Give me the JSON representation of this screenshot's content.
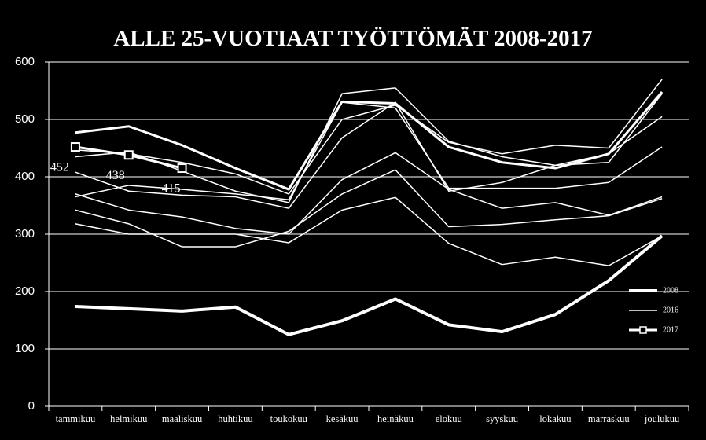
{
  "chart_data": {
    "type": "line",
    "title": "ALLE 25-VUOTIAAT TYÖTTÖMÄT 2008-2017",
    "categories": [
      "tammikuu",
      "helmikuu",
      "maaliskuu",
      "huhtikuu",
      "toukokuu",
      "kesäkuu",
      "heinäkuu",
      "elokuu",
      "syyskuu",
      "lokakuu",
      "marraskuu",
      "joulukuu"
    ],
    "ylim": [
      0,
      600
    ],
    "yticks": [
      0,
      100,
      200,
      300,
      400,
      500,
      600
    ],
    "grid": true,
    "legend": "right",
    "series": [
      {
        "name": "2008",
        "color": "#ffffff",
        "width": 4,
        "values": [
          174,
          170,
          166,
          173,
          125,
          149,
          187,
          142,
          130,
          160,
          219,
          297
        ]
      },
      {
        "color": "#ffffff",
        "width": 3,
        "values": [
          477,
          488,
          455,
          415,
          378,
          531,
          528,
          452,
          425,
          415,
          440,
          548
        ]
      },
      {
        "color": "#ffffff",
        "width": 1.5,
        "values": [
          447,
          440,
          425,
          405,
          370,
          500,
          525,
          460,
          440,
          455,
          450,
          570
        ]
      },
      {
        "color": "#ffffff",
        "width": 1.5,
        "values": [
          435,
          443,
          410,
          375,
          355,
          545,
          555,
          462,
          435,
          420,
          425,
          545
        ]
      },
      {
        "color": "#ffffff",
        "width": 1.5,
        "values": [
          408,
          375,
          368,
          365,
          345,
          468,
          530,
          375,
          390,
          420,
          440,
          505
        ]
      },
      {
        "name": "2016",
        "color": "#ffffff",
        "width": 1.5,
        "values": [
          365,
          385,
          378,
          370,
          360,
          530,
          520,
          380,
          380,
          380,
          390,
          452
        ]
      },
      {
        "color": "#ffffff",
        "width": 1.5,
        "values": [
          370,
          342,
          330,
          310,
          300,
          395,
          442,
          378,
          345,
          355,
          333,
          365
        ]
      },
      {
        "color": "#ffffff",
        "width": 1.5,
        "values": [
          342,
          318,
          278,
          278,
          305,
          370,
          412,
          313,
          317,
          325,
          332,
          362
        ]
      },
      {
        "color": "#ffffff",
        "width": 1.5,
        "values": [
          318,
          300,
          300,
          300,
          285,
          342,
          364,
          284,
          247,
          260,
          245,
          297
        ]
      },
      {
        "name": "2017",
        "color": "#ffffff",
        "width": 3,
        "marker": "square",
        "data_labels": true,
        "values": [
          452,
          438,
          415,
          null,
          null,
          null,
          null,
          null,
          null,
          null,
          null,
          null
        ]
      }
    ]
  }
}
